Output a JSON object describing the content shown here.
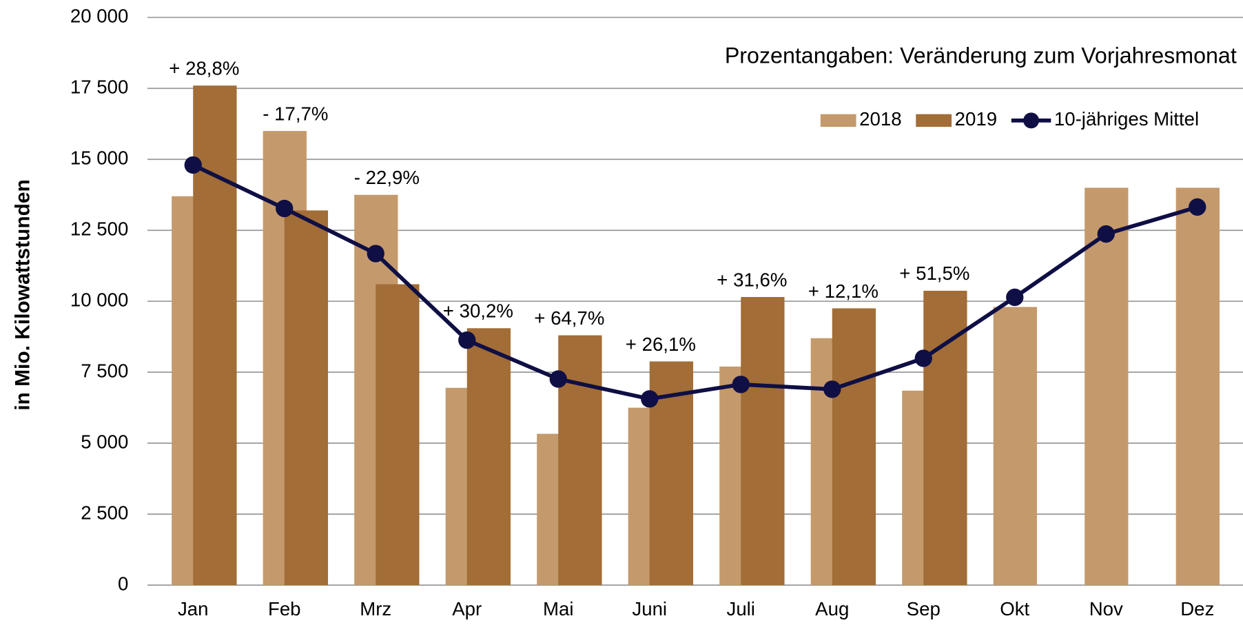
{
  "chart_data": {
    "type": "bar",
    "subtitle": "Prozentangaben: Veränderung zum Vorjahresmonat",
    "y_label": "in Mio. Kilowattstunden",
    "categories": [
      "Jan",
      "Feb",
      "Mrz",
      "Apr",
      "Mai",
      "Juni",
      "Juli",
      "Aug",
      "Sep",
      "Okt",
      "Nov",
      "Dez"
    ],
    "series": [
      {
        "name": "2018",
        "type": "bar",
        "color": "#c49a6c",
        "values": [
          13700,
          16000,
          13750,
          6950,
          5330,
          6250,
          7700,
          8700,
          6850,
          9800,
          14000,
          14000
        ]
      },
      {
        "name": "2019",
        "type": "bar",
        "color": "#a26d36",
        "values": [
          17600,
          13200,
          10600,
          9050,
          8800,
          7880,
          10150,
          9750,
          10370,
          null,
          null,
          null
        ]
      },
      {
        "name": "10-jähriges Mittel",
        "type": "line",
        "color": "#0f0f45",
        "values": [
          14800,
          13270,
          11680,
          8630,
          7260,
          6560,
          7070,
          6900,
          7990,
          10140,
          12370,
          13320
        ]
      }
    ],
    "change_labels": [
      "+ 28,8%",
      "- 17,7%",
      "- 22,9%",
      "+ 30,2%",
      "+ 64,7%",
      "+ 26,1%",
      "+ 31,6%",
      "+ 12,1%",
      "+ 51,5%"
    ],
    "ylim": [
      0,
      20000
    ],
    "yticks": [
      0,
      {
        "value": 2500,
        "label": "2 500"
      },
      {
        "value": 5000,
        "label": "5 000"
      },
      {
        "value": 7500,
        "label": "7 500"
      },
      {
        "value": 10000,
        "label": "10 000"
      },
      {
        "value": 12500,
        "label": "12 500"
      },
      {
        "value": 15000,
        "label": "15 000"
      },
      {
        "value": 17500,
        "label": "17 500"
      },
      {
        "value": 20000,
        "label": "20 000"
      }
    ],
    "grid": true,
    "legend": "top-right"
  }
}
